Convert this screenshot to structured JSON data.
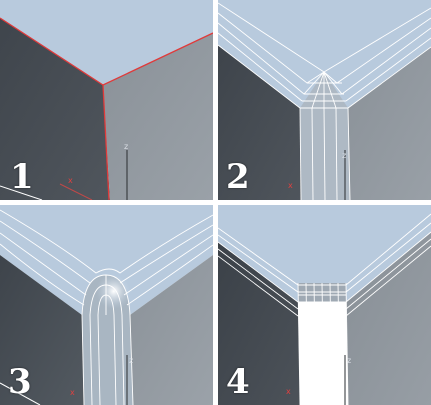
{
  "panels": [
    {
      "number": "1",
      "axis_z": "z",
      "axis_x": "x"
    },
    {
      "number": "2",
      "axis_z": "z",
      "axis_x": "x"
    },
    {
      "number": "3",
      "axis_z": "z",
      "axis_x": "x"
    },
    {
      "number": "4",
      "axis_z": "z",
      "axis_x": "x"
    }
  ],
  "colors": {
    "top_face": "#b6c8dc",
    "left_face": "#454b52",
    "right_face": "#8d949a",
    "edge_highlight": "#e03a3a",
    "wire": "#ffffff",
    "divider": "#ffffff"
  }
}
